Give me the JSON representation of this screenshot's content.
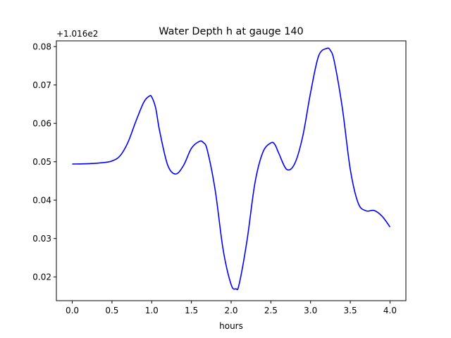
{
  "chart_data": {
    "type": "line",
    "title": "Water Depth h at gauge 140",
    "xlabel": "hours",
    "ylabel": "",
    "y_offset_label": "+1.016e2",
    "xlim": [
      -0.2,
      4.2
    ],
    "ylim": [
      0.0138,
      0.0815
    ],
    "x_ticks": [
      0.0,
      0.5,
      1.0,
      1.5,
      2.0,
      2.5,
      3.0,
      3.5,
      4.0
    ],
    "x_tick_labels": [
      "0.0",
      "0.5",
      "1.0",
      "1.5",
      "2.0",
      "2.5",
      "3.0",
      "3.5",
      "4.0"
    ],
    "y_ticks": [
      0.02,
      0.03,
      0.04,
      0.05,
      0.06,
      0.07,
      0.08
    ],
    "y_tick_labels": [
      "0.02",
      "0.03",
      "0.04",
      "0.05",
      "0.06",
      "0.07",
      "0.08"
    ],
    "grid": false,
    "series": [
      {
        "color": "#0000ff",
        "x": [
          0.0,
          0.2,
          0.4,
          0.5,
          0.6,
          0.7,
          0.8,
          0.9,
          0.97,
          1.0,
          1.05,
          1.1,
          1.2,
          1.3,
          1.4,
          1.5,
          1.6,
          1.65,
          1.7,
          1.8,
          1.9,
          2.0,
          2.06,
          2.1,
          2.2,
          2.3,
          2.4,
          2.5,
          2.55,
          2.6,
          2.7,
          2.8,
          2.9,
          3.0,
          3.1,
          3.2,
          3.25,
          3.3,
          3.4,
          3.5,
          3.6,
          3.7,
          3.8,
          3.9,
          4.0
        ],
        "y": [
          0.0494,
          0.0495,
          0.0498,
          0.0502,
          0.0515,
          0.055,
          0.0605,
          0.0655,
          0.0671,
          0.0669,
          0.064,
          0.058,
          0.0492,
          0.0468,
          0.049,
          0.0535,
          0.0553,
          0.055,
          0.053,
          0.0425,
          0.027,
          0.018,
          0.0169,
          0.018,
          0.0295,
          0.0445,
          0.0525,
          0.0549,
          0.0545,
          0.0522,
          0.048,
          0.0495,
          0.0565,
          0.068,
          0.0775,
          0.0795,
          0.079,
          0.076,
          0.064,
          0.048,
          0.0392,
          0.0372,
          0.0373,
          0.0358,
          0.033
        ]
      }
    ]
  }
}
